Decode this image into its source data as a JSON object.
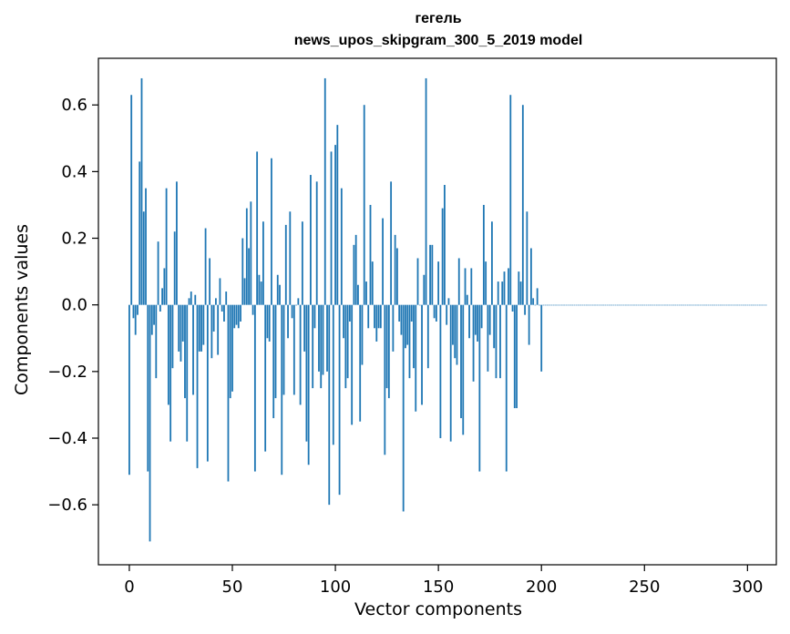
{
  "chart_data": {
    "type": "bar",
    "title_line1": "гегель",
    "title_line2": "news_upos_skipgram_300_5_2019 model",
    "xlabel": "Vector components",
    "ylabel": "Components values",
    "xlim": [
      -15,
      314
    ],
    "ylim": [
      -0.78,
      0.74
    ],
    "x_ticks": [
      0,
      50,
      100,
      150,
      200,
      250,
      300
    ],
    "y_ticks": [
      -0.6,
      -0.4,
      -0.2,
      0.0,
      0.2,
      0.4,
      0.6
    ],
    "y_tick_labels": [
      "−0.6",
      "−0.4",
      "−0.2",
      "0.0",
      "0.2",
      "0.4",
      "0.6"
    ],
    "bar_color": "#1f77b4",
    "values": [
      -0.51,
      0.63,
      -0.04,
      -0.09,
      -0.03,
      0.43,
      0.68,
      0.28,
      0.35,
      -0.5,
      -0.71,
      -0.09,
      -0.06,
      -0.22,
      0.19,
      -0.02,
      0.05,
      0.11,
      0.35,
      -0.3,
      -0.41,
      -0.19,
      0.22,
      0.37,
      -0.14,
      -0.17,
      -0.11,
      -0.28,
      -0.41,
      0.02,
      0.04,
      -0.27,
      0.03,
      -0.49,
      -0.14,
      -0.14,
      -0.12,
      0.23,
      -0.47,
      0.14,
      -0.16,
      -0.08,
      0.02,
      -0.15,
      0.08,
      -0.02,
      -0.05,
      0.04,
      -0.53,
      -0.28,
      -0.26,
      -0.07,
      -0.06,
      -0.07,
      -0.05,
      0.2,
      0.08,
      0.29,
      0.17,
      0.31,
      -0.03,
      -0.5,
      0.46,
      0.09,
      0.07,
      0.25,
      -0.44,
      -0.1,
      -0.11,
      0.44,
      -0.34,
      -0.28,
      0.09,
      0.06,
      -0.51,
      -0.27,
      0.24,
      -0.1,
      0.28,
      -0.04,
      -0.27,
      0.0,
      0.02,
      -0.3,
      0.25,
      -0.14,
      -0.41,
      -0.48,
      0.39,
      -0.25,
      -0.07,
      0.37,
      -0.2,
      -0.25,
      -0.21,
      0.68,
      -0.2,
      -0.6,
      0.46,
      -0.42,
      0.48,
      0.54,
      -0.57,
      0.35,
      -0.1,
      -0.25,
      -0.22,
      -0.05,
      -0.36,
      0.18,
      0.21,
      0.06,
      -0.35,
      -0.18,
      0.6,
      0.07,
      -0.07,
      0.3,
      0.13,
      -0.07,
      -0.11,
      -0.07,
      -0.07,
      0.26,
      -0.45,
      -0.25,
      -0.28,
      0.37,
      -0.14,
      0.21,
      0.17,
      -0.05,
      -0.09,
      -0.62,
      -0.13,
      -0.12,
      -0.22,
      -0.05,
      -0.19,
      -0.32,
      0.14,
      0.0,
      -0.3,
      0.09,
      0.68,
      -0.19,
      0.18,
      0.18,
      -0.04,
      -0.05,
      0.13,
      -0.4,
      0.29,
      0.36,
      -0.06,
      0.02,
      -0.41,
      -0.12,
      -0.16,
      -0.18,
      0.14,
      -0.34,
      -0.39,
      0.11,
      0.03,
      -0.1,
      0.11,
      -0.23,
      -0.09,
      -0.11,
      -0.5,
      -0.07,
      0.3,
      0.13,
      -0.2,
      -0.09,
      0.25,
      -0.13,
      -0.22,
      0.07,
      -0.22,
      0.07,
      0.1,
      -0.5,
      0.11,
      0.63,
      -0.02,
      -0.31,
      -0.31,
      0.1,
      0.07,
      0.6,
      -0.03,
      0.28,
      -0.12,
      0.17,
      0.02,
      0.0,
      0.05,
      0.0,
      -0.2,
      0.0,
      0.0,
      0.0,
      0.0,
      0.0,
      0.0,
      0.0,
      0.0,
      0.0,
      0.0,
      0.0,
      0.0,
      0.0,
      0.0,
      0.0,
      0.0,
      0.0,
      0.0,
      0.0,
      0.0,
      0.0,
      0.0,
      0.0,
      0.0,
      0.0,
      0.0,
      0.0,
      0.0,
      0.0,
      0.0,
      0.0,
      0.0,
      0.0,
      0.0,
      0.0,
      0.0,
      0.0,
      0.0,
      0.0,
      0.0,
      0.0,
      0.0,
      0.0,
      0.0,
      0.0,
      0.0,
      0.0,
      0.0,
      0.0,
      0.0,
      0.0,
      0.0,
      0.0,
      0.0,
      0.0,
      0.0,
      0.0,
      0.0,
      0.0,
      0.0,
      0.0,
      0.0,
      0.0,
      0.0,
      0.0,
      0.0,
      0.0,
      0.0,
      0.0,
      0.0,
      0.0,
      0.0,
      0.0,
      0.0,
      0.0,
      0.0,
      0.0,
      0.0,
      0.0,
      0.0,
      0.0,
      0.0,
      0.0,
      0.0,
      0.0,
      0.0,
      0.0,
      0.0,
      0.0,
      0.0,
      0.0,
      0.0,
      0.0,
      0.0,
      0.0,
      0.0,
      0.0,
      0.0,
      0.0,
      0.0,
      0.0,
      0.0,
      0.0,
      0.0,
      0.0,
      0.0,
      0.0,
      0.0,
      0.0
    ]
  }
}
